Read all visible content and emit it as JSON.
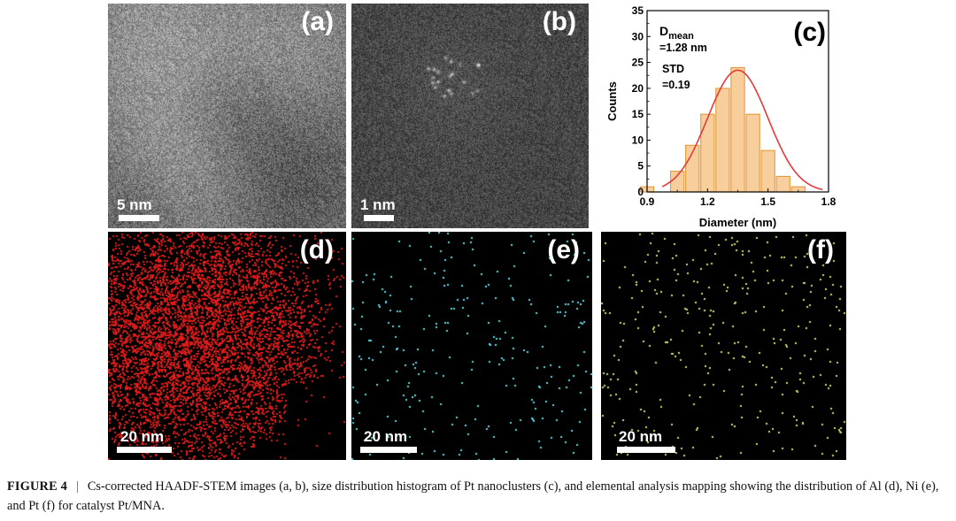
{
  "panels": {
    "a": {
      "label": "(a)",
      "scale_bar": "5 nm"
    },
    "b": {
      "label": "(b)",
      "scale_bar": "1 nm"
    },
    "c": {
      "label": "(c)"
    },
    "d": {
      "label": "(d)",
      "scale_bar": "20 nm",
      "map_color": "#e01b1b"
    },
    "e": {
      "label": "(e)",
      "scale_bar": "20 nm",
      "map_color": "#5fd8e8"
    },
    "f": {
      "label": "(f)",
      "scale_bar": "20 nm",
      "map_color": "#c8e070"
    }
  },
  "chart_data": {
    "type": "bar",
    "xlabel": "Diameter (nm)",
    "ylabel": "Counts",
    "xlim": [
      0.9,
      1.8
    ],
    "ylim": [
      0,
      35
    ],
    "xticks": [
      0.9,
      1.2,
      1.5,
      1.8
    ],
    "yticks": [
      0,
      5,
      10,
      15,
      20,
      25,
      30,
      35
    ],
    "bin_width": 0.075,
    "x": [
      0.9,
      0.975,
      1.05,
      1.125,
      1.2,
      1.275,
      1.35,
      1.425,
      1.5,
      1.575,
      1.65,
      1.725
    ],
    "values": [
      1,
      0,
      4,
      9,
      15,
      20,
      24,
      15,
      8,
      3,
      1,
      0
    ],
    "fit_curve": {
      "type": "gaussian",
      "center": 1.35,
      "sigma": 0.15,
      "amplitude": 23.5
    },
    "annotations": {
      "d_main": "D",
      "d_sub": "mean",
      "d_value": "=1.28 nm",
      "std_label": "STD",
      "std_value": "=0.19"
    },
    "colors": {
      "bar_fill": "#f8cf9c",
      "bar_stroke": "#e29a3e",
      "fit_line": "#e23b3b"
    }
  },
  "caption": {
    "figure_label": "FIGURE 4",
    "separator": "|",
    "text": "Cs-corrected HAADF-STEM images (a, b), size distribution histogram of Pt nanoclusters (c), and elemental analysis mapping showing the distribution of Al (d), Ni (e), and Pt (f) for catalyst Pt/MNA."
  }
}
